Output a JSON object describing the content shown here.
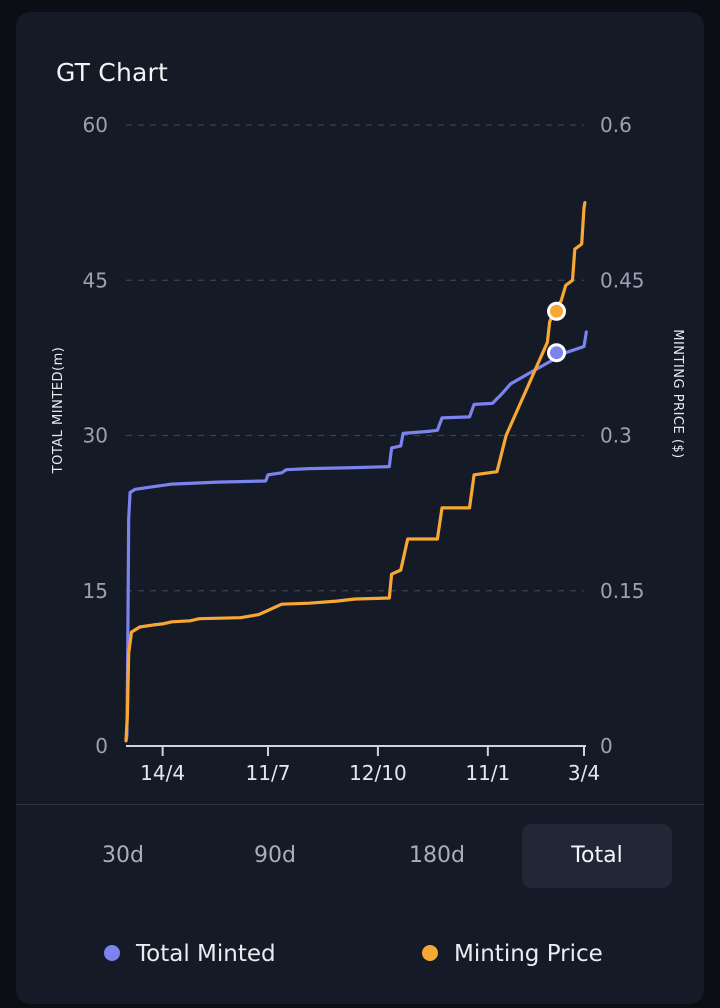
{
  "card": {
    "title": "GT Chart"
  },
  "chart_data": {
    "type": "line",
    "title": "GT Chart",
    "ylabel_left": "TOTAL MINTED(m)",
    "ylabel_right": "MINTING PRICE ($)",
    "ylim_left": [
      0,
      60
    ],
    "ylim_right": [
      0,
      0.6
    ],
    "yticks_left": [
      "60",
      "45",
      "30",
      "15",
      "0"
    ],
    "yticks_right": [
      "0.6",
      "0.45",
      "0.3",
      "0.15",
      "0"
    ],
    "yticks_values": [
      60,
      45,
      30,
      15,
      0
    ],
    "xlim": [
      0,
      100
    ],
    "x_ticks": [
      {
        "label": "14/4",
        "x": 8
      },
      {
        "label": "11/7",
        "x": 31
      },
      {
        "label": "12/10",
        "x": 55
      },
      {
        "label": "11/1",
        "x": 79
      },
      {
        "label": "3/4",
        "x": 100
      }
    ],
    "grid": true,
    "series": [
      {
        "name": "Total Minted",
        "color": "#7b83ee",
        "axis": "left",
        "points": [
          [
            0,
            0.5
          ],
          [
            0.2,
            1
          ],
          [
            0.4,
            10
          ],
          [
            0.6,
            22
          ],
          [
            0.9,
            24.5
          ],
          [
            2,
            24.8
          ],
          [
            5,
            25
          ],
          [
            10,
            25.3
          ],
          [
            20,
            25.5
          ],
          [
            30.5,
            25.6
          ],
          [
            31,
            26.2
          ],
          [
            34,
            26.4
          ],
          [
            35,
            26.7
          ],
          [
            40,
            26.8
          ],
          [
            50,
            26.9
          ],
          [
            57.5,
            27
          ],
          [
            58,
            28.8
          ],
          [
            60,
            29
          ],
          [
            60.5,
            30.2
          ],
          [
            66,
            30.4
          ],
          [
            68,
            30.5
          ],
          [
            69,
            31.7
          ],
          [
            75,
            31.8
          ],
          [
            76,
            33
          ],
          [
            80,
            33.1
          ],
          [
            82,
            34
          ],
          [
            84,
            35
          ],
          [
            88,
            36
          ],
          [
            92,
            37
          ],
          [
            96,
            38
          ],
          [
            100,
            38.6
          ],
          [
            100.5,
            40
          ]
        ],
        "marker": [
          94,
          38
        ]
      },
      {
        "name": "Minting Price",
        "color": "#f7a734",
        "axis": "right",
        "points": [
          [
            0,
            0.005
          ],
          [
            0.3,
            0.03
          ],
          [
            0.6,
            0.09
          ],
          [
            1.2,
            0.11
          ],
          [
            3,
            0.115
          ],
          [
            6,
            0.117
          ],
          [
            8,
            0.118
          ],
          [
            10,
            0.12
          ],
          [
            14,
            0.121
          ],
          [
            16,
            0.123
          ],
          [
            25,
            0.124
          ],
          [
            29,
            0.127
          ],
          [
            31,
            0.131
          ],
          [
            32,
            0.133
          ],
          [
            34,
            0.137
          ],
          [
            40,
            0.138
          ],
          [
            46,
            0.14
          ],
          [
            50,
            0.142
          ],
          [
            57.5,
            0.143
          ],
          [
            58,
            0.166
          ],
          [
            60,
            0.17
          ],
          [
            61.5,
            0.2
          ],
          [
            68,
            0.2
          ],
          [
            69,
            0.23
          ],
          [
            75,
            0.23
          ],
          [
            76,
            0.262
          ],
          [
            81,
            0.265
          ],
          [
            83,
            0.3
          ],
          [
            86,
            0.33
          ],
          [
            89,
            0.36
          ],
          [
            92,
            0.39
          ],
          [
            92.5,
            0.41
          ],
          [
            93.5,
            0.42
          ],
          [
            95,
            0.43
          ],
          [
            96,
            0.445
          ],
          [
            97.5,
            0.45
          ],
          [
            98,
            0.48
          ],
          [
            99.5,
            0.485
          ],
          [
            100,
            0.52
          ],
          [
            100.2,
            0.525
          ]
        ],
        "marker": [
          94,
          0.42
        ]
      }
    ]
  },
  "tabs": [
    "30d",
    "90d",
    "180d",
    "Total"
  ],
  "active_tab_index": 3,
  "legend": {
    "minted": "Total Minted",
    "price": "Minting Price"
  },
  "colors": {
    "minted": "#7b83ee",
    "price": "#f7a734",
    "grid": "#3a4152",
    "axis": "#cfd3dc"
  }
}
